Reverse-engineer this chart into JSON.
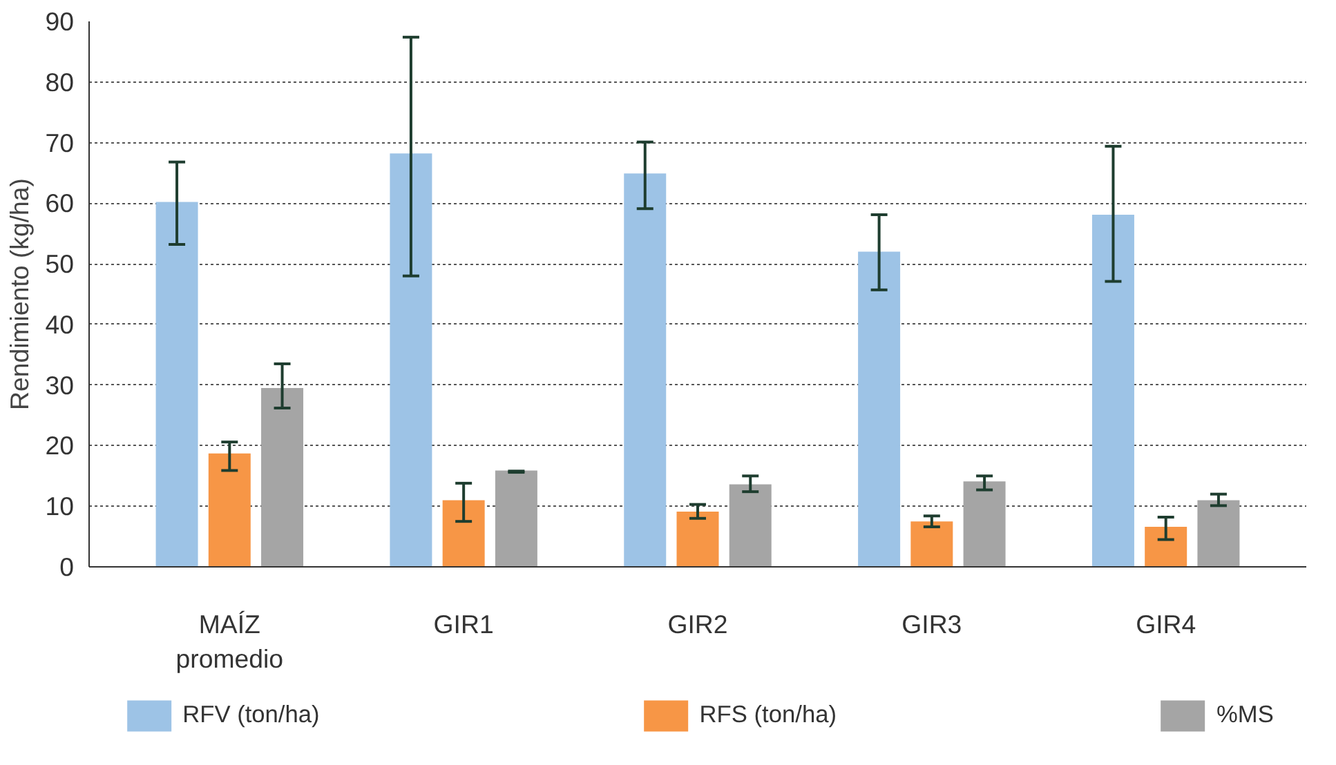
{
  "chart_data": {
    "type": "bar",
    "ylabel": "Rendimiento (kg/ha)",
    "categories": [
      "MAÍZ\npromedio",
      "GIR1",
      "GIR2",
      "GIR3",
      "GIR4"
    ],
    "series": [
      {
        "name": "RFV (ton/ha)",
        "color": "#9dc3e6",
        "values": [
          60.2,
          68.2,
          64.9,
          52.0,
          58.1
        ],
        "errors": [
          [
            53.2,
            66.8
          ],
          [
            48.0,
            87.4
          ],
          [
            59.1,
            70.1
          ],
          [
            45.7,
            58.1
          ],
          [
            47.1,
            69.4
          ]
        ]
      },
      {
        "name": "RFS (ton/ha)",
        "color": "#f79646",
        "values": [
          18.7,
          11.0,
          9.1,
          7.5,
          6.6
        ],
        "errors": [
          [
            15.9,
            20.6
          ],
          [
            7.5,
            13.8
          ],
          [
            8.0,
            10.3
          ],
          [
            6.6,
            8.4
          ],
          [
            4.5,
            8.2
          ]
        ]
      },
      {
        "name": "%MS",
        "color": "#a5a5a5",
        "values": [
          29.5,
          15.9,
          13.6,
          14.1,
          11.0
        ],
        "errors": [
          [
            26.2,
            33.5
          ],
          [
            15.6,
            15.8
          ],
          [
            12.4,
            15.0
          ],
          [
            12.7,
            15.0
          ],
          [
            10.1,
            12.0
          ]
        ]
      }
    ],
    "ylim": [
      0,
      90
    ],
    "yticks": [
      0,
      10,
      20,
      30,
      40,
      50,
      60,
      70,
      80,
      90
    ],
    "grid": "y",
    "legend": "bottom"
  }
}
